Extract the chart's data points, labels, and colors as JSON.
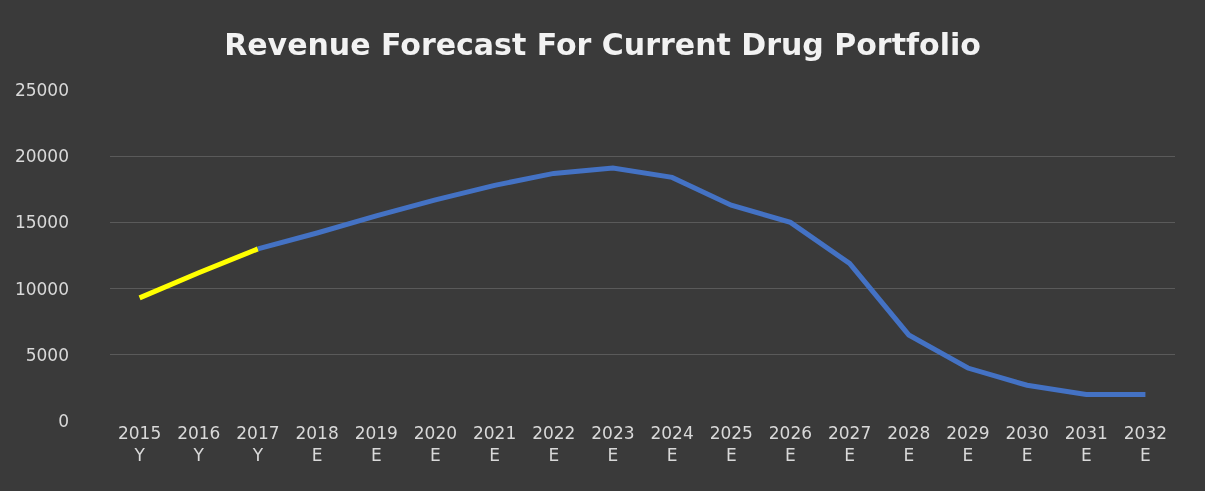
{
  "chart_data": {
    "type": "line",
    "title": "Revenue Forecast For Current Drug Portfolio",
    "categories": [
      "2015\nY",
      "2016\nY",
      "2017\nY",
      "2018\nE",
      "2019\nE",
      "2020\nE",
      "2021\nE",
      "2022\nE",
      "2023\nE",
      "2024\nE",
      "2025\nE",
      "2026\nE",
      "2027\nE",
      "2028\nE",
      "2029\nE",
      "2030\nE",
      "2031\nE",
      "2032\nE"
    ],
    "series": [
      {
        "color": "#ffff00",
        "values": [
          9300,
          11200,
          13000,
          null,
          null,
          null,
          null,
          null,
          null,
          null,
          null,
          null,
          null,
          null,
          null,
          null,
          null,
          null
        ]
      },
      {
        "color": "#4472c4",
        "values": [
          null,
          null,
          13000,
          14200,
          15500,
          16700,
          17800,
          18700,
          19100,
          18400,
          16300,
          15000,
          11900,
          6500,
          4000,
          2700,
          2000,
          2000
        ]
      }
    ],
    "ylim": [
      0,
      25000
    ],
    "yticks": [
      0,
      5000,
      10000,
      15000,
      20000,
      25000
    ],
    "grid": "y",
    "marker": "none",
    "line_style": "solid"
  }
}
